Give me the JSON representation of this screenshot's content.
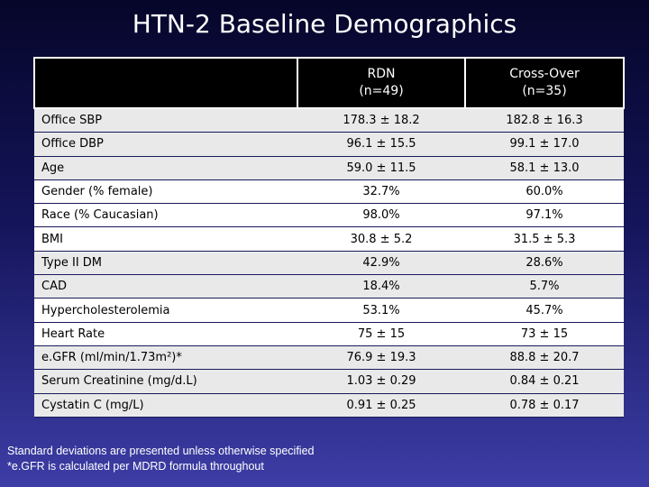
{
  "title": "HTN-2 Baseline Demographics",
  "table": {
    "headers": [
      "",
      "RDN\n(n=49)",
      "Cross-Over\n(n=35)"
    ],
    "header_lines": [
      [
        "RDN",
        "(n=49)"
      ],
      [
        "Cross-Over",
        "(n=35)"
      ]
    ],
    "rows": [
      {
        "label": "Office SBP",
        "rdn": "178.3 ± 18.2",
        "cross": "182.8 ± 16.3"
      },
      {
        "label": "Office DBP",
        "rdn": "96.1 ± 15.5",
        "cross": "99.1 ± 17.0"
      },
      {
        "label": "Age",
        "rdn": "59.0 ± 11.5",
        "cross": "58.1 ± 13.0"
      },
      {
        "label": "Gender (% female)",
        "rdn": "32.7%",
        "cross": "60.0%"
      },
      {
        "label": "Race (% Caucasian)",
        "rdn": "98.0%",
        "cross": "97.1%"
      },
      {
        "label": "BMI",
        "rdn": "30.8 ± 5.2",
        "cross": "31.5 ± 5.3"
      },
      {
        "label": "Type II DM",
        "rdn": "42.9%",
        "cross": "28.6%"
      },
      {
        "label": "CAD",
        "rdn": "18.4%",
        "cross": "5.7%"
      },
      {
        "label": "Hypercholesterolemia",
        "rdn": "53.1%",
        "cross": "45.7%"
      },
      {
        "label": "Heart Rate",
        "rdn": "75 ± 15",
        "cross": "73 ± 15"
      },
      {
        "label": "e.GFR (ml/min/1.73m²)*",
        "rdn": "76.9 ± 19.3",
        "cross": "88.8 ± 20.7"
      },
      {
        "label": "Serum Creatinine (mg/d.L)",
        "rdn": "1.03 ± 0.29",
        "cross": "0.84 ± 0.21"
      },
      {
        "label": "Cystatin C (mg/L)",
        "rdn": "0.91 ± 0.25",
        "cross": "0.78 ± 0.17"
      }
    ]
  },
  "footnotes": [
    "Standard deviations are presented unless otherwise specified",
    "*e.GFR is calculated per MDRD formula throughout"
  ]
}
